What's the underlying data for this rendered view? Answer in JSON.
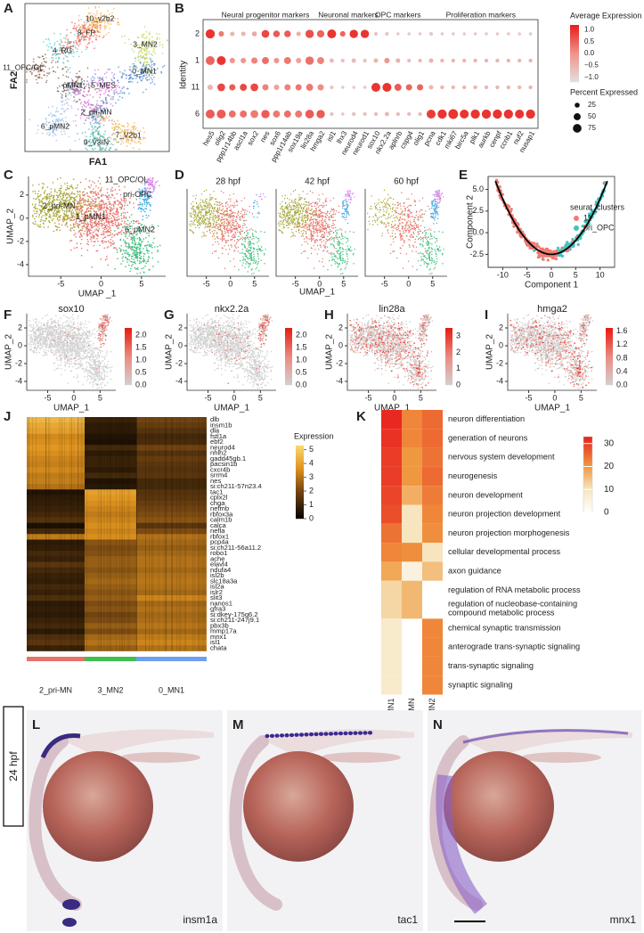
{
  "panels": {
    "A": {
      "label": "A",
      "xlabel": "FA1",
      "ylabel": "FA2",
      "clusters": [
        "10_v2b2",
        "8_FP",
        "3_MN2",
        "4_RG",
        "0_MN1",
        "11_OPC/OL",
        "pMN1",
        "5_MES",
        "2_pri-MN",
        "6_pMN2",
        "7_V2b1",
        "9_V3IN"
      ]
    },
    "B": {
      "label": "B",
      "ylabel": "Identity",
      "rows": [
        "2",
        "1",
        "11",
        "6"
      ],
      "groups": [
        {
          "name": "Neural progenitor markers",
          "genes": [
            "hes5",
            "olig2",
            "ppp1r14bb",
            "ascl1a",
            "sox2",
            "nes",
            "sox6",
            "ppp1r14ab",
            "sox19a",
            "lin28a",
            "hmga2"
          ]
        },
        {
          "name": "Neuronal markers",
          "genes": [
            "isl1",
            "lhx3",
            "neurod4",
            "neurod1"
          ]
        },
        {
          "name": "OPC markers",
          "genes": [
            "sox10",
            "nkx2.2a",
            "aplnrb",
            "cspg4",
            "olig1"
          ]
        },
        {
          "name": "Proliferation markers",
          "genes": [
            "pcna",
            "cdk1",
            "mki67",
            "birc5a",
            "plk1",
            "aurkb",
            "cenpf",
            "ccnb1",
            "nuf2",
            "nusap1"
          ]
        }
      ],
      "percent": [
        [
          85,
          30,
          20,
          20,
          25,
          60,
          45,
          45,
          20,
          70,
          55,
          80,
          30,
          70,
          70,
          15,
          15,
          10,
          10,
          10,
          15,
          10,
          10,
          10,
          10,
          10,
          10,
          10,
          10,
          10
        ],
        [
          80,
          80,
          30,
          30,
          40,
          50,
          30,
          50,
          30,
          70,
          50,
          20,
          15,
          20,
          15,
          20,
          30,
          20,
          15,
          15,
          20,
          15,
          15,
          15,
          15,
          15,
          15,
          15,
          15,
          15
        ],
        [
          30,
          60,
          40,
          50,
          60,
          40,
          30,
          40,
          40,
          50,
          40,
          15,
          10,
          10,
          10,
          80,
          80,
          50,
          40,
          40,
          20,
          15,
          15,
          15,
          15,
          15,
          15,
          15,
          15,
          15
        ],
        [
          80,
          80,
          50,
          50,
          60,
          70,
          50,
          50,
          50,
          75,
          70,
          15,
          10,
          15,
          15,
          15,
          20,
          15,
          15,
          15,
          80,
          85,
          95,
          80,
          85,
          85,
          85,
          85,
          80,
          85
        ]
      ],
      "average": [
        [
          1.0,
          0.3,
          -0.5,
          -0.5,
          -0.3,
          0.8,
          0.6,
          0.6,
          -0.4,
          0.7,
          0.5,
          1.0,
          0.5,
          1.0,
          1.0,
          -0.8,
          -0.8,
          -0.8,
          -0.8,
          -0.8,
          -0.8,
          -0.8,
          -0.8,
          -0.8,
          -0.8,
          -0.8,
          -0.8,
          -0.8,
          -0.8,
          -0.8
        ],
        [
          0.5,
          1.0,
          0.0,
          0.0,
          0.2,
          0.4,
          0.0,
          0.3,
          -0.2,
          0.4,
          0.2,
          -0.6,
          -0.7,
          -0.6,
          -0.7,
          -0.5,
          0.0,
          -0.4,
          -0.6,
          -0.6,
          -0.5,
          -0.5,
          -0.5,
          -0.5,
          -0.5,
          -0.5,
          -0.5,
          -0.5,
          -0.5,
          -0.5
        ],
        [
          -0.5,
          0.8,
          0.6,
          0.8,
          0.8,
          0.2,
          -0.2,
          0.2,
          0.3,
          0.3,
          0.1,
          -0.8,
          -0.8,
          -0.8,
          -0.8,
          1.0,
          1.0,
          0.6,
          0.5,
          0.5,
          -0.5,
          -0.5,
          -0.5,
          -0.5,
          -0.5,
          -0.5,
          -0.5,
          -0.5,
          -0.5,
          -0.5
        ],
        [
          0.6,
          0.6,
          0.4,
          0.4,
          0.3,
          0.6,
          0.3,
          0.4,
          0.3,
          0.6,
          0.6,
          -0.7,
          -0.7,
          -0.7,
          -0.7,
          -0.6,
          -0.6,
          -0.6,
          -0.6,
          -0.6,
          0.9,
          1.0,
          1.0,
          1.0,
          1.0,
          1.0,
          1.0,
          1.0,
          1.0,
          1.0
        ]
      ],
      "color_legend": {
        "title": "Average Expression",
        "lim": [
          -1.2,
          1.2
        ],
        "ticks": [
          {
            "value": 1,
            "label": "1.0"
          },
          {
            "value": 0.5,
            "label": "0.5"
          },
          {
            "value": 0,
            "label": "0.0"
          },
          {
            "value": -0.5,
            "label": "−0.5"
          },
          {
            "value": -1,
            "label": "−1.0"
          }
        ]
      },
      "size_legend": {
        "title": "Percent Expressed",
        "ticks": [
          25,
          50,
          75
        ]
      }
    },
    "C": {
      "label": "C",
      "xlabel": "UMAP _1",
      "ylabel": "UMAP_2",
      "xlim": [
        -9,
        8
      ],
      "ylim": [
        -5,
        3.6
      ],
      "xticks": [
        -5,
        0,
        5
      ],
      "yticks": [
        2,
        0,
        -2,
        -4
      ],
      "clusters": [
        "11_OPC/OL",
        "pri-OPC",
        "2_pri-MN",
        "1_pMN1",
        "6_pMN2"
      ]
    },
    "D": {
      "label": "D",
      "xlabel": "UMAP_1",
      "xlim": [
        -9,
        8
      ],
      "ylim": [
        -5,
        3.6
      ],
      "subpanels": [
        {
          "title": "28 hpf",
          "xticks": [
            -5,
            0,
            5
          ]
        },
        {
          "title": "42 hpf",
          "xticks": [
            -5,
            0,
            5
          ]
        },
        {
          "title": "60 hpf",
          "xticks": [
            -5,
            0,
            5
          ]
        }
      ]
    },
    "E": {
      "label": "E",
      "xlabel": "Component 1",
      "ylabel": "Component 2",
      "xlim": [
        -13,
        13
      ],
      "ylim": [
        -4,
        6.5
      ],
      "xticks": [
        -10,
        -5,
        0,
        5,
        10
      ],
      "yticks": [
        {
          "value": 5,
          "label": "5.0"
        },
        {
          "value": 2.5,
          "label": "2.5"
        },
        {
          "value": 0,
          "label": "0.0"
        },
        {
          "value": -2.5,
          "label": "-2.5"
        }
      ],
      "legend_title": "seurat_clusters",
      "legend": [
        "11",
        "pri_OPC"
      ]
    },
    "features": [
      {
        "label": "F",
        "gene": "sox10",
        "lim": [
          0,
          2.3
        ],
        "ticks": [
          {
            "value": 2,
            "label": "2.0"
          },
          {
            "value": 1.5,
            "label": "1.5"
          },
          {
            "value": 1,
            "label": "1.0"
          },
          {
            "value": 0.5,
            "label": "0.5"
          },
          {
            "value": 0,
            "label": "0.0"
          }
        ]
      },
      {
        "label": "G",
        "gene": "nkx2.2a",
        "lim": [
          0,
          2.3
        ],
        "ticks": [
          {
            "value": 2,
            "label": "2.0"
          },
          {
            "value": 1.5,
            "label": "1.5"
          },
          {
            "value": 1,
            "label": "1.0"
          },
          {
            "value": 0.5,
            "label": "0.5"
          },
          {
            "value": 0,
            "label": "0.0"
          }
        ]
      },
      {
        "label": "H",
        "gene": "lin28a",
        "lim": [
          0,
          3.5
        ],
        "ticks": [
          3,
          2,
          1,
          0
        ]
      },
      {
        "label": "I",
        "gene": "hmga2",
        "lim": [
          0,
          1.7
        ],
        "ticks": [
          {
            "value": 1.6,
            "label": "1.6"
          },
          {
            "value": 1.2,
            "label": "1.2"
          },
          {
            "value": 0.8,
            "label": "0.8"
          },
          {
            "value": 0.4,
            "label": "0.4"
          },
          {
            "value": 0,
            "label": "0.0"
          }
        ]
      }
    ],
    "feature_axes": {
      "xlabel": "UMAP_1",
      "ylabel": "UMAP_2",
      "xticks": [
        -5,
        0,
        5
      ],
      "yticks": [
        2,
        0,
        -2,
        -4
      ],
      "xlim": [
        -9,
        8
      ],
      "ylim": [
        -5,
        3.6
      ]
    },
    "J": {
      "label": "J",
      "legend_title": "Expression",
      "lim": [
        0,
        5.3
      ],
      "ticks": [
        5,
        4,
        3,
        2,
        1,
        0
      ],
      "groups": [
        "2_pri-MN",
        "3_MN2",
        "0_MN1"
      ],
      "genes": [
        "dlb",
        "insm1b",
        "dla",
        "fstl1a",
        "ebf2",
        "neurod4",
        "nhlh2",
        "gadd45gb.1",
        "pacsin1b",
        "cxcr4b",
        "srrm4",
        "nes",
        "si:ch211-57n23.4",
        "tac1",
        "cplx2l",
        "chga",
        "nefmb",
        "rbfox3a",
        "calm1b",
        "calca",
        "nefla",
        "rbfox1",
        "pcp4a",
        "si:ch211-56a11.2",
        "robo1",
        "ache",
        "elavl4",
        "ndufa4",
        "isl2b",
        "slc18a3a",
        "isl2a",
        "islr2",
        "slit3",
        "nanos1",
        "gfra3",
        "si:dkey-175g6.2",
        "si:ch211-247j9.1",
        "pbx3b",
        "mmp17a",
        "mnx1",
        "isl1",
        "chata"
      ],
      "values": [
        [
          4.5,
          1.0,
          2.0
        ],
        [
          4.2,
          0.8,
          1.8
        ],
        [
          4.0,
          0.8,
          1.5
        ],
        [
          3.5,
          0.6,
          1.2
        ],
        [
          3.6,
          0.5,
          1.3
        ],
        [
          3.8,
          1.2,
          2.0
        ],
        [
          3.6,
          0.8,
          1.5
        ],
        [
          3.4,
          1.0,
          1.8
        ],
        [
          3.3,
          1.0,
          1.6
        ],
        [
          3.5,
          0.8,
          1.5
        ],
        [
          3.2,
          1.2,
          1.6
        ],
        [
          3.3,
          0.6,
          1.2
        ],
        [
          3.0,
          0.7,
          1.2
        ],
        [
          0.6,
          4.0,
          1.5
        ],
        [
          0.8,
          3.8,
          1.6
        ],
        [
          0.9,
          3.6,
          1.8
        ],
        [
          1.0,
          3.4,
          2.0
        ],
        [
          1.2,
          3.2,
          2.2
        ],
        [
          1.5,
          3.4,
          2.4
        ],
        [
          0.5,
          3.6,
          1.6
        ],
        [
          1.2,
          3.4,
          2.2
        ],
        [
          3.2,
          3.6,
          3.0
        ],
        [
          0.8,
          2.4,
          2.8
        ],
        [
          0.9,
          2.2,
          2.6
        ],
        [
          1.2,
          2.3,
          2.8
        ],
        [
          1.0,
          2.6,
          3.0
        ],
        [
          1.6,
          2.6,
          3.0
        ],
        [
          1.2,
          2.4,
          2.8
        ],
        [
          1.0,
          2.6,
          3.0
        ],
        [
          0.9,
          2.8,
          3.1
        ],
        [
          1.2,
          2.6,
          3.0
        ],
        [
          1.0,
          2.4,
          2.8
        ],
        [
          1.4,
          2.6,
          3.4
        ],
        [
          0.8,
          2.2,
          2.8
        ],
        [
          0.9,
          2.4,
          3.0
        ],
        [
          0.8,
          2.0,
          2.8
        ],
        [
          1.0,
          2.2,
          2.9
        ],
        [
          1.2,
          2.6,
          3.1
        ],
        [
          0.8,
          2.2,
          2.8
        ],
        [
          1.4,
          2.8,
          3.2
        ],
        [
          1.6,
          3.0,
          3.4
        ],
        [
          1.0,
          2.6,
          3.0
        ]
      ]
    },
    "K": {
      "label": "K",
      "lim": [
        0,
        33
      ],
      "ticks": [
        30,
        20,
        10,
        0
      ],
      "columns": [
        "0_MN1",
        "2_pri-MN",
        "3_MN2"
      ],
      "terms": [
        "neuron differentiation",
        "generation of neurons",
        "nervous system development",
        "neurogenesis",
        "neuron development",
        "neuron projection development",
        "neuron projection morphogenesis",
        "cellular developmental process",
        "axon guidance",
        "regulation of RNA metabolic process",
        "regulation of nucleobase-containing compound metabolic process",
        "chemical synaptic transmission",
        "anterograde trans-synaptic signaling",
        "trans-synaptic signaling",
        "synaptic signaling"
      ],
      "values": [
        [
          32,
          22,
          25
        ],
        [
          31,
          22,
          25
        ],
        [
          30,
          20,
          24
        ],
        [
          30,
          20,
          25
        ],
        [
          29,
          17,
          23
        ],
        [
          28,
          10,
          22
        ],
        [
          24,
          10,
          21
        ],
        [
          22,
          21,
          10
        ],
        [
          18,
          5,
          15
        ],
        [
          12,
          16,
          null
        ],
        [
          12,
          16,
          null
        ],
        [
          8,
          null,
          22
        ],
        [
          8,
          null,
          22
        ],
        [
          8,
          null,
          22
        ],
        [
          8,
          null,
          22
        ]
      ]
    },
    "insitu": {
      "stage": "24 hpf",
      "images": [
        {
          "label": "L",
          "gene": "insm1a"
        },
        {
          "label": "M",
          "gene": "tac1"
        },
        {
          "label": "N",
          "gene": "mnx1"
        }
      ]
    }
  }
}
